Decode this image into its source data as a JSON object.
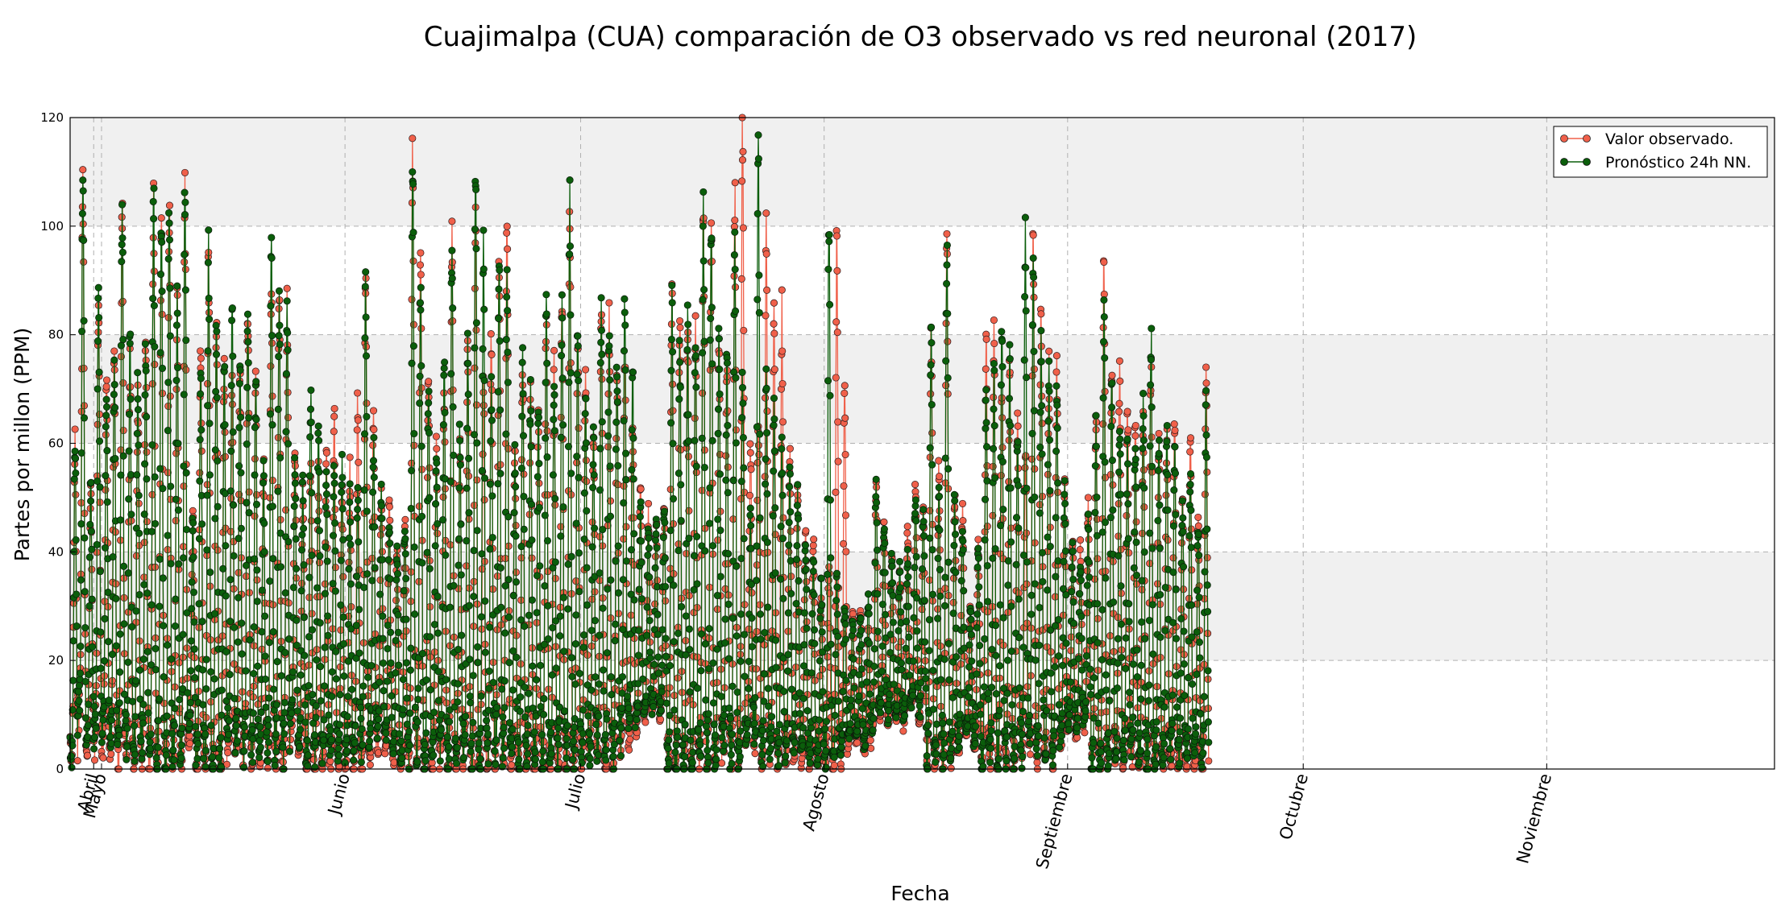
{
  "chart_data": {
    "type": "line",
    "title": "Cuajimalpa (CUA) comparación de O3 observado vs red neuronal (2017)",
    "xlabel": "Fecha",
    "ylabel": "Partes por millon (PPM)",
    "ylim": [
      0,
      120
    ],
    "y_ticks": [
      0,
      20,
      40,
      60,
      80,
      100,
      120
    ],
    "x_range": [
      "2017-04-27",
      "2017-11-30"
    ],
    "x_ticks": [
      {
        "date": "2017-04-30",
        "label": "Abril"
      },
      {
        "date": "2017-05-01",
        "label": "Mayo"
      },
      {
        "date": "2017-06-01",
        "label": "Junio"
      },
      {
        "date": "2017-07-01",
        "label": "Julio"
      },
      {
        "date": "2017-08-01",
        "label": "Agosto"
      },
      {
        "date": "2017-09-01",
        "label": "Septiembre"
      },
      {
        "date": "2017-10-01",
        "label": "Octubre"
      },
      {
        "date": "2017-11-01",
        "label": "Noviembre"
      }
    ],
    "grid": true,
    "background_bands": [
      [
        20,
        40
      ],
      [
        60,
        80
      ],
      [
        100,
        120
      ]
    ],
    "legend_position": "top-right",
    "colors": {
      "observado": "#f0604a",
      "pronostico": "#0b5e0b",
      "band": "#f0f0f0"
    },
    "series": [
      {
        "name": "Valor observado.",
        "daily_max": [
          60,
          107,
          50,
          88,
          72,
          75,
          104,
          75,
          70,
          79,
          102,
          103,
          102,
          86,
          104,
          48,
          77,
          94,
          82,
          75,
          72,
          72,
          86,
          70,
          56,
          91,
          86,
          84,
          60,
          50,
          56,
          54,
          57,
          65,
          52,
          55,
          68,
          90,
          66,
          51,
          50,
          40,
          45,
          115,
          96,
          75,
          60,
          70,
          102,
          60,
          76,
          98,
          72,
          80,
          96,
          104,
          60,
          75,
          70,
          65,
          87,
          73,
          87,
          104,
          82,
          70,
          60,
          82,
          84,
          75,
          75,
          63,
          51,
          47,
          45,
          48,
          87,
          82,
          83,
          79,
          105,
          103,
          82,
          75,
          106,
          119,
          60,
          65,
          99,
          82,
          84,
          60,
          52,
          45,
          42,
          32,
          36,
          98,
          70,
          30,
          30,
          25,
          52,
          45,
          38,
          36,
          44,
          52,
          48,
          80,
          56,
          96,
          51,
          48,
          30,
          42,
          79,
          80,
          67,
          75,
          65,
          60,
          97,
          85,
          73,
          75,
          52,
          42,
          41,
          49,
          65,
          92,
          75,
          72,
          68,
          63,
          63,
          76,
          62,
          62,
          64,
          50,
          63,
          44,
          73
        ],
        "daily_min": [
          2,
          12,
          5,
          6,
          5,
          5,
          5,
          4,
          3,
          4,
          2,
          2,
          1,
          3,
          2,
          6,
          1,
          3,
          2,
          1,
          6,
          4,
          3,
          2,
          3,
          4,
          3,
          2,
          8,
          4,
          1,
          2,
          1,
          3,
          1,
          1,
          1,
          2,
          3,
          5,
          4,
          2,
          1,
          2,
          3,
          1,
          2,
          3,
          2,
          2,
          3,
          1,
          1,
          2,
          4,
          3,
          2,
          0,
          1,
          2,
          0,
          0,
          1,
          0,
          2,
          3,
          2,
          4,
          1,
          2,
          5,
          6,
          8,
          10,
          12,
          11,
          2,
          1,
          1,
          1,
          2,
          3,
          2,
          4,
          3,
          2,
          5,
          6,
          3,
          4,
          2,
          3,
          4,
          2,
          1,
          1,
          3,
          0,
          3,
          5,
          6,
          4,
          8,
          10,
          9,
          10,
          9,
          12,
          10,
          3,
          2,
          4,
          3,
          5,
          7,
          5,
          2,
          3,
          1,
          3,
          2,
          4,
          5,
          3,
          4,
          2,
          6,
          8,
          7,
          9,
          1,
          1,
          2,
          4,
          3,
          3,
          2,
          1,
          2,
          2,
          3,
          2,
          3,
          2,
          2
        ]
      },
      {
        "name": "Pronóstico 24h NN.",
        "daily_max": [
          60,
          109,
          52,
          89,
          70,
          75,
          104,
          80,
          72,
          78,
          105,
          104,
          104,
          86,
          104,
          46,
          75,
          94,
          80,
          73,
          86,
          72,
          85,
          70,
          54,
          93,
          85,
          84,
          57,
          52,
          70,
          65,
          55,
          55,
          56,
          50,
          50,
          90,
          60,
          50,
          45,
          40,
          45,
          109,
          87,
          70,
          60,
          75,
          98,
          63,
          77,
          110,
          95,
          72,
          95,
          92,
          57,
          75,
          70,
          65,
          86,
          70,
          86,
          104,
          80,
          70,
          60,
          83,
          80,
          76,
          86,
          72,
          50,
          45,
          45,
          49,
          87,
          78,
          81,
          80,
          103,
          102,
          81,
          75,
          101,
          72,
          46,
          112,
          70,
          65,
          60,
          55,
          50,
          42,
          38,
          36,
          100,
          35,
          30,
          28,
          28,
          32,
          52,
          45,
          40,
          38,
          40,
          50,
          48,
          79,
          52,
          97,
          50,
          45,
          30,
          40,
          70,
          72,
          81,
          75,
          63,
          98,
          90,
          78,
          72,
          70,
          52,
          40,
          38,
          45,
          62,
          85,
          70,
          65,
          60,
          60,
          69,
          80,
          60,
          62,
          60,
          49,
          55,
          45,
          66
        ],
        "daily_min": [
          3,
          12,
          6,
          8,
          7,
          6,
          8,
          6,
          5,
          6,
          5,
          4,
          3,
          5,
          4,
          8,
          3,
          4,
          3,
          3,
          8,
          6,
          5,
          4,
          5,
          6,
          5,
          4,
          10,
          6,
          3,
          4,
          3,
          5,
          3,
          3,
          4,
          5,
          6,
          8,
          7,
          4,
          3,
          4,
          5,
          3,
          4,
          5,
          4,
          4,
          5,
          3,
          3,
          4,
          6,
          5,
          4,
          3,
          3,
          4,
          2,
          3,
          3,
          2,
          4,
          5,
          4,
          6,
          3,
          4,
          7,
          8,
          10,
          11,
          12,
          12,
          1,
          1,
          1,
          2,
          3,
          4,
          3,
          5,
          4,
          3,
          6,
          7,
          4,
          5,
          3,
          4,
          5,
          4,
          3,
          2,
          4,
          2,
          4,
          6,
          7,
          5,
          9,
          11,
          10,
          11,
          10,
          12,
          11,
          4,
          3,
          5,
          4,
          6,
          8,
          6,
          3,
          4,
          2,
          4,
          3,
          5,
          6,
          4,
          5,
          3,
          7,
          9,
          8,
          10,
          2,
          1,
          3,
          5,
          4,
          4,
          3,
          2,
          3,
          3,
          4,
          3,
          4,
          3,
          3
        ]
      }
    ]
  }
}
